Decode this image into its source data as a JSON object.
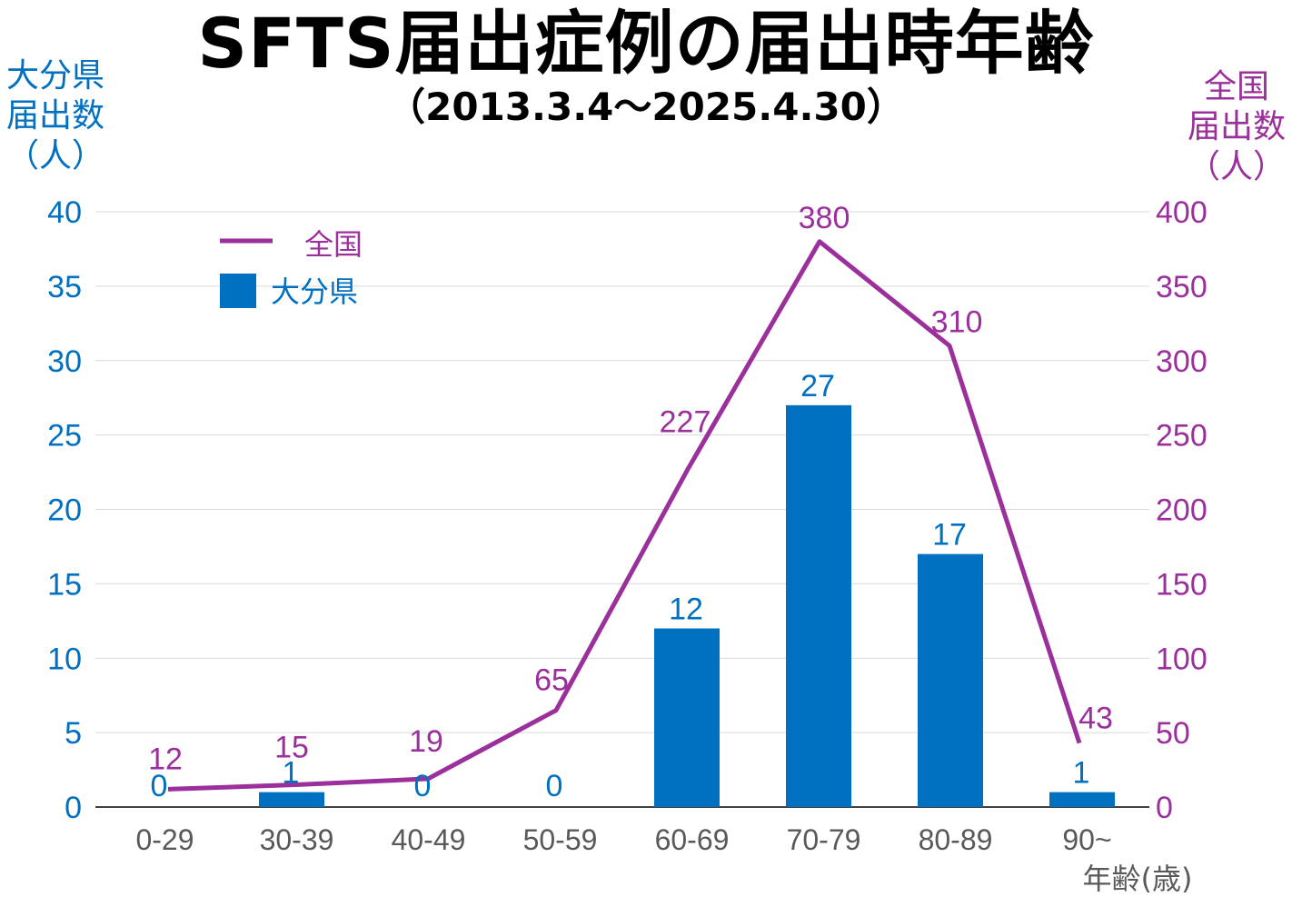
{
  "chart_data": {
    "type": "bar+line",
    "title": "SFTS届出症例の届出時年齢",
    "subtitle": "（2013.3.4～2025.4.30）",
    "categories": [
      "0-29",
      "30-39",
      "40-49",
      "50-59",
      "60-69",
      "70-79",
      "80-89",
      "90~"
    ],
    "xlabel": "年齢(歳)",
    "ylabel_left": [
      "大分県",
      "届出数",
      "（人）"
    ],
    "ylabel_right": [
      "全国",
      "届出数",
      "（人）"
    ],
    "ylim_left": [
      0,
      40
    ],
    "ylim_right": [
      0,
      400
    ],
    "yticks_left": [
      "0",
      "5",
      "10",
      "15",
      "20",
      "25",
      "30",
      "35",
      "40"
    ],
    "yticks_right": [
      "0",
      "50",
      "100",
      "150",
      "200",
      "250",
      "300",
      "350",
      "400"
    ],
    "grid": true,
    "legend_position": "top-left",
    "series": [
      {
        "name": "全国",
        "type": "line",
        "axis": "right",
        "color": "#9b2f9b",
        "values": [
          12,
          15,
          19,
          65,
          227,
          380,
          310,
          43
        ],
        "labels": [
          "12",
          "15",
          "19",
          "65",
          "227",
          "380",
          "310",
          "43"
        ]
      },
      {
        "name": "大分県",
        "type": "bar",
        "axis": "left",
        "color": "#0070c0",
        "values": [
          0,
          1,
          0,
          0,
          12,
          27,
          17,
          1
        ],
        "labels": [
          "0",
          "1",
          "0",
          "0",
          "12",
          "27",
          "17",
          "1"
        ]
      }
    ]
  }
}
